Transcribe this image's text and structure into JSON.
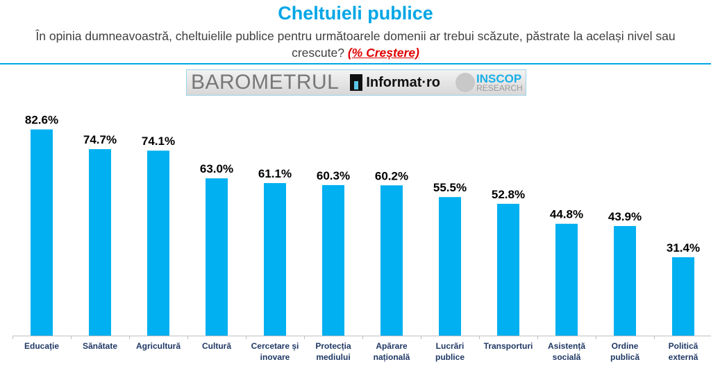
{
  "header": {
    "title": "Cheltuieli publice",
    "subtitle": "În opinia dumneavoastră, cheltuielile publice pentru următoarele domenii ar trebui scăzute, păstrate la același nivel sau crescute?",
    "highlight": "(% Creștere)"
  },
  "logo": {
    "barometrul": "BAROMETRUL",
    "informat": "Informat·ro",
    "inscop1": "INSCOP",
    "inscop2": "RESEARCH"
  },
  "colors": {
    "bar": "#00b0f0",
    "title": "#00a6e6",
    "labels": "#1f3864"
  },
  "chart_data": {
    "type": "bar",
    "title": "Cheltuieli publice",
    "categories": [
      "Educație",
      "Sănătate",
      "Agricultură",
      "Cultură",
      "Cercetare și inovare",
      "Protecția mediului",
      "Apărare națională",
      "Lucrări publice",
      "Transporturi",
      "Asistență socială",
      "Ordine publică",
      "Politică externă"
    ],
    "values": [
      82.6,
      74.7,
      74.1,
      63.0,
      61.1,
      60.3,
      60.2,
      55.5,
      52.8,
      44.8,
      43.9,
      31.4
    ],
    "labels": [
      "82.6%",
      "74.7%",
      "74.1%",
      "63.0%",
      "61.1%",
      "60.3%",
      "60.2%",
      "55.5%",
      "52.8%",
      "44.8%",
      "43.9%",
      "31.4%"
    ],
    "ylim": [
      0,
      100
    ],
    "grid": false,
    "legend": "none"
  }
}
